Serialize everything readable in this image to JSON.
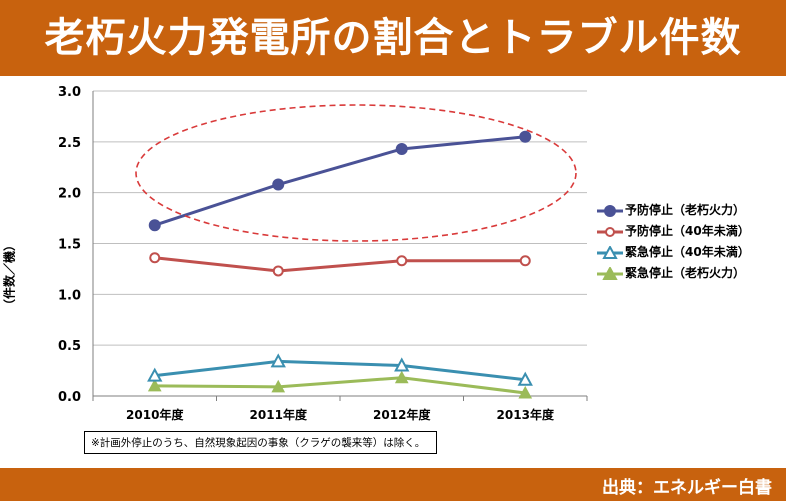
{
  "header": {
    "title": "老朽火力発電所の割合とトラブル件数"
  },
  "footer": {
    "source": "出典：エネルギー白書"
  },
  "note": "※計画外停止のうち、自然現象起因の事象（クラゲの襲来等）は除く。",
  "chart_data": {
    "type": "line",
    "title": "老朽火力発電所の割合とトラブル件数",
    "ylabel": "（件数／機）",
    "xlabel": "",
    "categories": [
      "2010年度",
      "2011年度",
      "2012年度",
      "2013年度"
    ],
    "ylim": [
      0,
      3.0
    ],
    "yticks": [
      "0.0",
      "0.5",
      "1.0",
      "1.5",
      "2.0",
      "2.5",
      "3.0"
    ],
    "grid": true,
    "legend_position": "right",
    "series": [
      {
        "name": "予防停止（老朽火力）",
        "values": [
          1.68,
          2.08,
          2.43,
          2.55
        ],
        "color": "#4a5296",
        "marker": "filled-circle"
      },
      {
        "name": "予防停止（40年未満）",
        "values": [
          1.36,
          1.23,
          1.33,
          1.33
        ],
        "color": "#c0504d",
        "marker": "open-circle"
      },
      {
        "name": "緊急停止（40年未満）",
        "values": [
          0.2,
          0.34,
          0.3,
          0.16
        ],
        "color": "#3a8fb0",
        "marker": "open-triangle"
      },
      {
        "name": "緊急停止（老朽火力）",
        "values": [
          0.1,
          0.09,
          0.18,
          0.03
        ],
        "color": "#9bbb59",
        "marker": "filled-triangle"
      }
    ],
    "annotation": {
      "type": "dashed-ellipse",
      "color": "#d93a3a",
      "around_series": "予防停止（老朽火力）"
    }
  }
}
